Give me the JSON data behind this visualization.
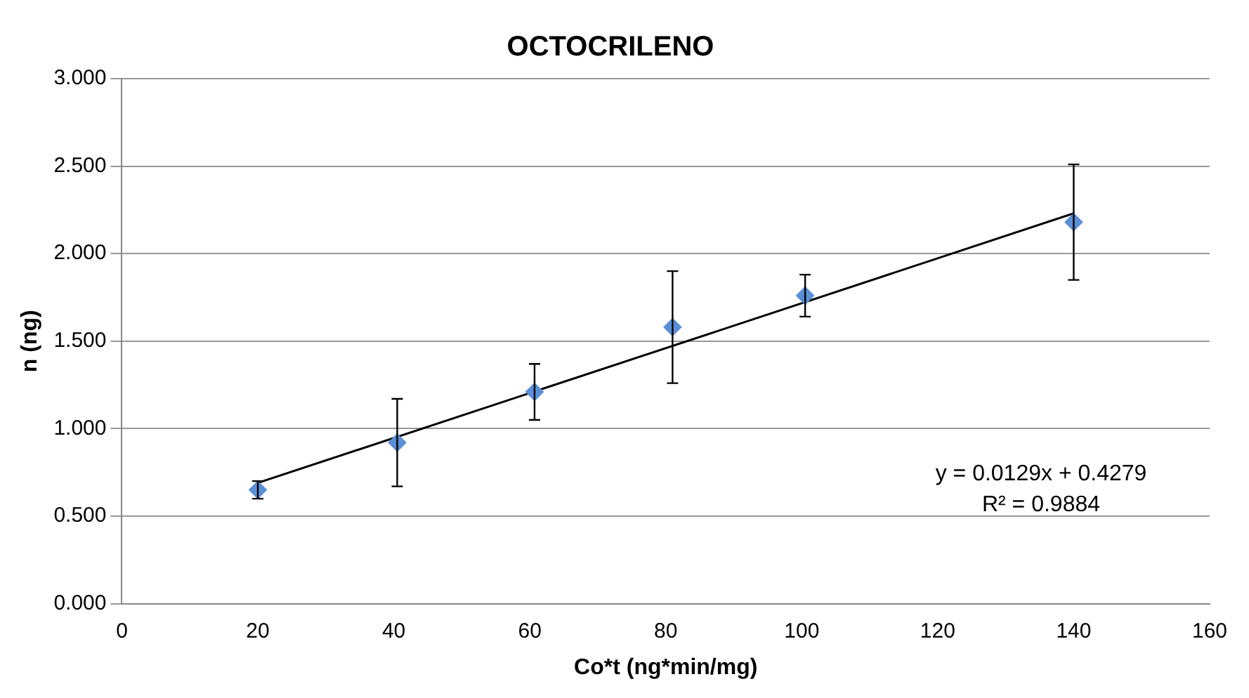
{
  "chart_data": {
    "type": "scatter",
    "title": "OCTOCRILENO",
    "xlabel": "Co*t (ng*min/mg)",
    "ylabel": "n (ng)",
    "xlim": [
      0,
      160
    ],
    "xticks": [
      0,
      20,
      40,
      60,
      80,
      100,
      120,
      140,
      160
    ],
    "ylim": [
      0,
      3
    ],
    "yticks": [
      {
        "value": 0,
        "label": "0.000"
      },
      {
        "value": 0.5,
        "label": "0.500"
      },
      {
        "value": 1,
        "label": "1.000"
      },
      {
        "value": 1.5,
        "label": "1.500"
      },
      {
        "value": 2,
        "label": "2.000"
      },
      {
        "value": 2.5,
        "label": "2.500"
      },
      {
        "value": 3,
        "label": "3.000"
      }
    ],
    "grid": "y",
    "legend": false,
    "marker": "diamond",
    "series": [
      {
        "color": "#5b8fd6",
        "x": [
          20,
          40.5,
          60.7,
          81,
          100.5,
          140
        ],
        "values": [
          0.65,
          0.92,
          1.21,
          1.58,
          1.76,
          2.18
        ],
        "errors": [
          0.05,
          0.25,
          0.16,
          0.32,
          0.12,
          0.33
        ]
      },
      {
        "type": "line",
        "color": "#000000",
        "x": [
          20,
          140
        ],
        "values": [
          0.69,
          2.23
        ],
        "marker": "none"
      }
    ],
    "annotations": [
      "y = 0.0129x + 0.4279",
      "R² = 0.9884"
    ]
  }
}
